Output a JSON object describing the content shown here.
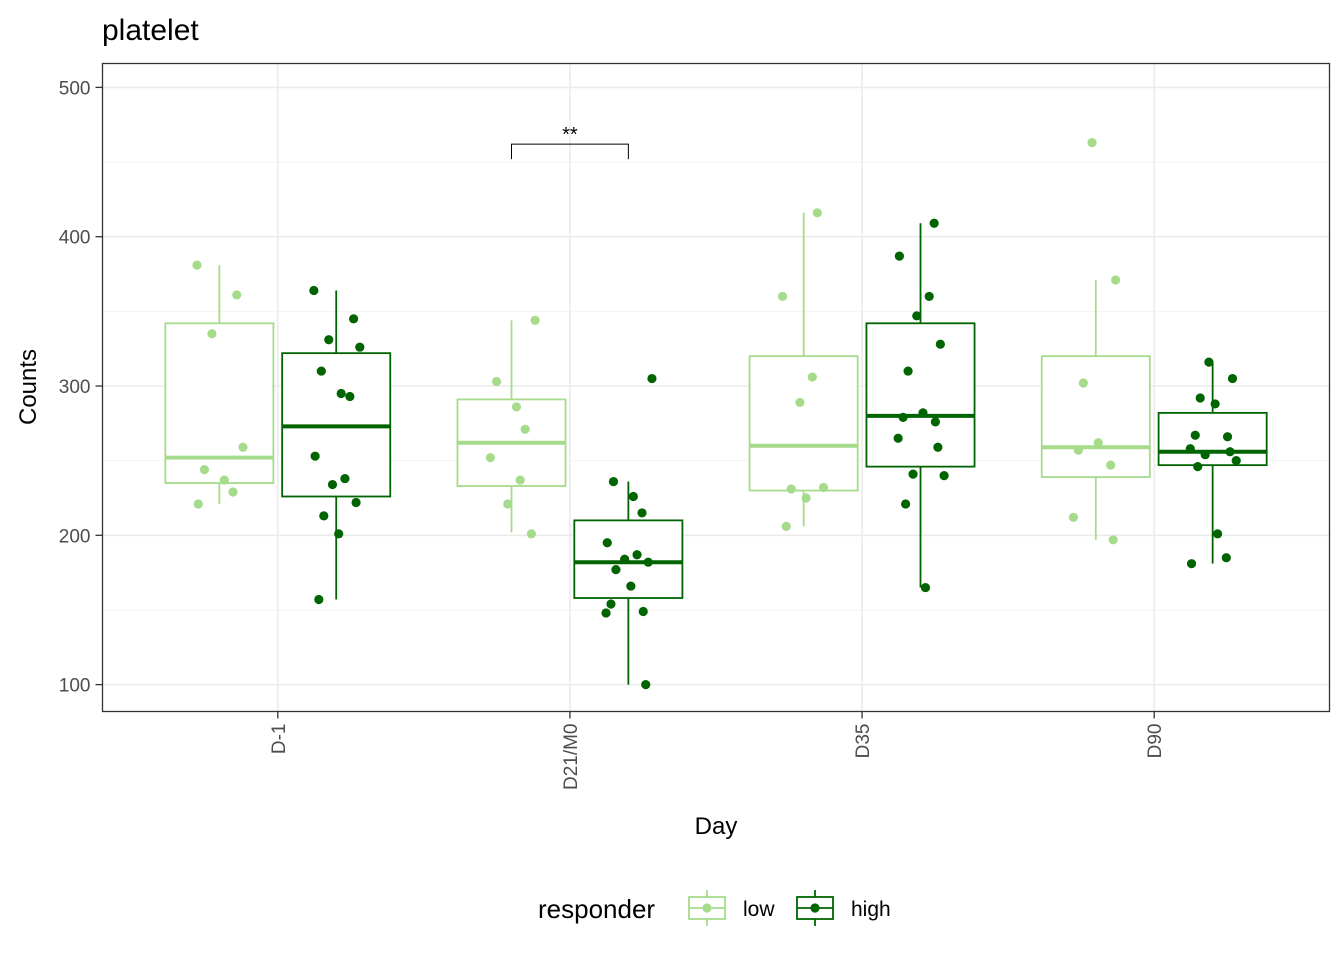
{
  "chart_data": {
    "type": "box",
    "title": "platelet",
    "xlabel": "Day",
    "ylabel": "Counts",
    "categories": [
      "D-1",
      "D21/M0",
      "D35",
      "D90"
    ],
    "ylim": [
      82,
      516
    ],
    "yticks": [
      100,
      200,
      300,
      400,
      500
    ],
    "grid": true,
    "legend": {
      "title": "responder",
      "position": "bottom",
      "entries": [
        "low",
        "high"
      ]
    },
    "colors": {
      "low": "#a6db8c",
      "high": "#006400"
    },
    "series": [
      {
        "name": "low",
        "boxes": [
          {
            "category": "D-1",
            "lower_whisker": 221,
            "q1": 235,
            "median": 252,
            "q3": 342,
            "upper_whisker": 381
          },
          {
            "category": "D21/M0",
            "lower_whisker": 202,
            "q1": 233,
            "median": 262,
            "q3": 291,
            "upper_whisker": 344
          },
          {
            "category": "D35",
            "lower_whisker": 206,
            "q1": 230,
            "median": 260,
            "q3": 320,
            "upper_whisker": 416
          },
          {
            "category": "D90",
            "lower_whisker": 197,
            "q1": 239,
            "median": 259,
            "q3": 320,
            "upper_whisker": 371
          }
        ],
        "points": [
          {
            "category": "D-1",
            "values": [
              381,
              361,
              335,
              259,
              244,
              237,
              229,
              221
            ]
          },
          {
            "category": "D21/M0",
            "values": [
              344,
              303,
              286,
              271,
              252,
              237,
              221,
              201
            ]
          },
          {
            "category": "D35",
            "values": [
              416,
              360,
              306,
              289,
              232,
              231,
              225,
              206
            ]
          },
          {
            "category": "D90",
            "values": [
              463,
              371,
              302,
              262,
              257,
              247,
              212,
              197
            ]
          }
        ]
      },
      {
        "name": "high",
        "boxes": [
          {
            "category": "D-1",
            "lower_whisker": 157,
            "q1": 226,
            "median": 273,
            "q3": 322,
            "upper_whisker": 364
          },
          {
            "category": "D21/M0",
            "lower_whisker": 100,
            "q1": 158,
            "median": 182,
            "q3": 210,
            "upper_whisker": 236
          },
          {
            "category": "D35",
            "lower_whisker": 165,
            "q1": 246,
            "median": 280,
            "q3": 342,
            "upper_whisker": 409
          },
          {
            "category": "D90",
            "lower_whisker": 181,
            "q1": 247,
            "median": 256,
            "q3": 282,
            "upper_whisker": 316
          }
        ],
        "points": [
          {
            "category": "D-1",
            "values": [
              364,
              345,
              331,
              326,
              310,
              295,
              293,
              253,
              238,
              234,
              222,
              213,
              201,
              157
            ]
          },
          {
            "category": "D21/M0",
            "values": [
              305,
              236,
              226,
              215,
              195,
              187,
              184,
              182,
              177,
              166,
              154,
              149,
              148,
              100
            ]
          },
          {
            "category": "D35",
            "values": [
              409,
              387,
              360,
              347,
              328,
              310,
              282,
              279,
              276,
              265,
              259,
              241,
              240,
              221,
              165
            ]
          },
          {
            "category": "D90",
            "values": [
              316,
              305,
              292,
              288,
              267,
              266,
              258,
              256,
              254,
              250,
              246,
              201,
              185,
              181
            ]
          }
        ]
      }
    ],
    "annotations": [
      {
        "text": "**",
        "category": "D21/M0",
        "groups": [
          "low",
          "high"
        ],
        "bracket_y": 462
      }
    ]
  }
}
